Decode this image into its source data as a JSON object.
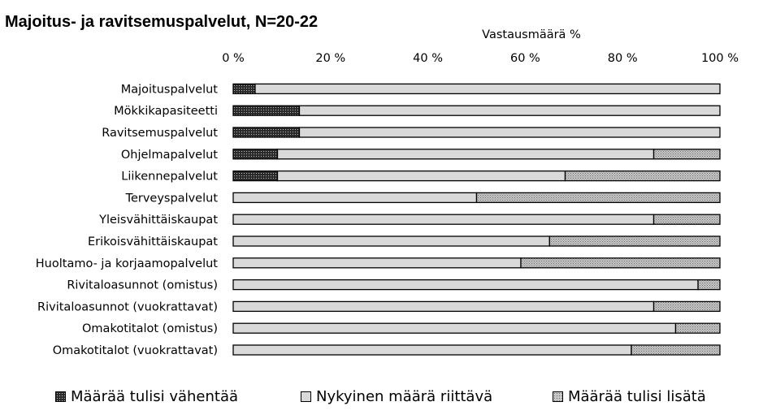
{
  "chart_data": {
    "type": "bar",
    "orientation": "horizontal",
    "stacked": true,
    "title": "Majoitus- ja ravitsemuspalvelut, N=20-22",
    "xlabel": "Vastausmäärä %",
    "ylabel": "",
    "xlim": [
      0,
      100
    ],
    "xticks": [
      "0 %",
      "20 %",
      "40 %",
      "60 %",
      "80 %",
      "100 %"
    ],
    "grid": false,
    "legend_position": "bottom",
    "categories": [
      "Majoituspalvelut",
      "Mökkikapasiteetti",
      "Ravitsemuspalvelut",
      "Ohjelmapalvelut",
      "Liikennepalvelut",
      "Terveyspalvelut",
      "Yleisvähittäiskaupat",
      "Erikoisvähittäiskaupat",
      "Huoltamo- ja korjaamopalvelut",
      "Rivitaloasunnot (omistus)",
      "Rivitaloasunnot (vuokrattavat)",
      "Omakotitalot (omistus)",
      "Omakotitalot (vuokrattavat)"
    ],
    "series": [
      {
        "name": "Määrää tulisi vähentää",
        "pattern": "dark-dots",
        "color": "#3a3a3a",
        "values": [
          4.5,
          13.6,
          13.6,
          9.1,
          9.1,
          0,
          0,
          0,
          0,
          0,
          0,
          0,
          0
        ]
      },
      {
        "name": "Nykyinen määrä riittävä",
        "pattern": "solid",
        "color": "#d9d9d9",
        "values": [
          95.5,
          86.4,
          86.4,
          77.3,
          59.1,
          50.0,
          86.4,
          65.0,
          59.1,
          95.5,
          86.4,
          90.9,
          81.8
        ]
      },
      {
        "name": "Määrää tulisi lisätä",
        "pattern": "light-dots",
        "color": "#a6a6a6",
        "values": [
          0,
          0,
          0,
          13.6,
          31.8,
          50.0,
          13.6,
          35.0,
          40.9,
          4.5,
          13.6,
          9.1,
          18.2
        ]
      }
    ]
  }
}
